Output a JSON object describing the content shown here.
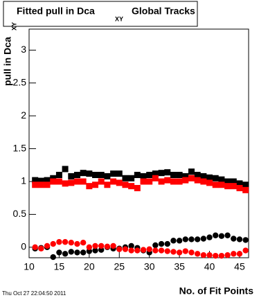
{
  "chart_data": {
    "type": "scatter",
    "title": "Fitted pull in Dca",
    "title_subscript": "XY",
    "title_suffix": "Global Tracks",
    "y_label": "pull in Dca",
    "y_label_subscript": "XY",
    "x_label": "No. of Fit Points",
    "timestamp": "Thu Oct 27 22:04:50 2011",
    "x": [
      11,
      12,
      13,
      14,
      15,
      16,
      17,
      18,
      19,
      20,
      21,
      22,
      23,
      24,
      25,
      26,
      27,
      28,
      29,
      30,
      31,
      32,
      33,
      34,
      35,
      36,
      37,
      38,
      39,
      40,
      41,
      42,
      43,
      44,
      45,
      46
    ],
    "series": [
      {
        "color": "#000000",
        "marker": "square",
        "values": [
          1.02,
          1.01,
          1.02,
          1.05,
          1.1,
          1.19,
          1.08,
          1.1,
          1.13,
          1.12,
          1.1,
          1.1,
          1.08,
          1.12,
          1.12,
          1.05,
          1.05,
          1.1,
          1.08,
          1.1,
          1.12,
          1.13,
          1.14,
          1.1,
          1.1,
          1.08,
          1.15,
          1.1,
          1.08,
          1.06,
          1.05,
          1.03,
          1.0,
          1.0,
          0.97,
          0.95
        ]
      },
      {
        "color": "#ff0000",
        "marker": "square",
        "values": [
          0.95,
          0.95,
          0.95,
          1.0,
          1.0,
          0.97,
          0.98,
          1.0,
          1.0,
          0.93,
          0.95,
          1.0,
          0.95,
          1.0,
          0.98,
          0.95,
          0.93,
          0.9,
          1.0,
          1.0,
          1.05,
          1.0,
          1.02,
          1.0,
          1.0,
          1.02,
          1.05,
          1.02,
          1.0,
          0.98,
          0.95,
          0.95,
          0.93,
          0.93,
          0.9,
          0.87
        ]
      },
      {
        "color": "#000000",
        "marker": "circle",
        "values": [
          -0.02,
          -0.01,
          0.0,
          -0.15,
          -0.08,
          -0.1,
          -0.07,
          -0.08,
          -0.08,
          -0.06,
          -0.05,
          -0.04,
          0.0,
          -0.02,
          -0.02,
          0.0,
          0.02,
          -0.01,
          -0.05,
          -0.08,
          0.03,
          0.05,
          0.05,
          0.1,
          0.1,
          0.12,
          0.12,
          0.12,
          0.13,
          0.15,
          0.18,
          0.17,
          0.18,
          0.13,
          0.12,
          0.11
        ]
      },
      {
        "color": "#ff0000",
        "marker": "circle",
        "values": [
          0.0,
          -0.02,
          0.02,
          0.05,
          0.08,
          0.08,
          0.07,
          0.05,
          0.07,
          0.0,
          0.02,
          0.02,
          0.01,
          0.02,
          -0.03,
          -0.03,
          -0.05,
          -0.05,
          -0.04,
          -0.03,
          -0.05,
          -0.05,
          -0.06,
          -0.07,
          -0.08,
          -0.06,
          -0.08,
          -0.1,
          -0.12,
          -0.12,
          -0.13,
          -0.13,
          -0.12,
          -0.1,
          -0.1,
          -0.05
        ]
      }
    ],
    "xlim": [
      10,
      46.5
    ],
    "ylim": [
      -0.16,
      3.32
    ],
    "xticks": [
      10,
      15,
      20,
      25,
      30,
      35,
      40,
      45
    ],
    "yticks": [
      0,
      0.5,
      1,
      1.5,
      2,
      2.5,
      3
    ]
  }
}
